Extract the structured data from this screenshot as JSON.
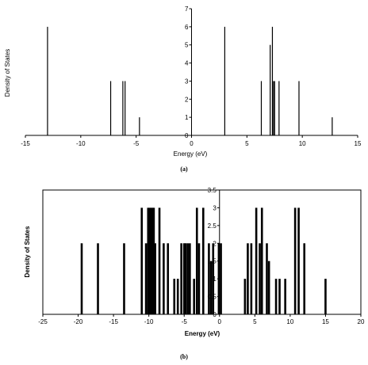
{
  "chart_data": [
    {
      "type": "bar",
      "caption": "(a)",
      "xlabel": "Energy (eV)",
      "ylabel": "Density of States",
      "xlim": [
        -15,
        15
      ],
      "ylim": [
        0,
        7
      ],
      "x_ticks": [
        -15,
        -10,
        -5,
        0,
        5,
        10,
        15
      ],
      "y_ticks": [
        0,
        1,
        2,
        3,
        4,
        5,
        6,
        7
      ],
      "grid": false,
      "legend": "none",
      "bars": [
        {
          "x": -13.0,
          "y": 6
        },
        {
          "x": -7.3,
          "y": 3
        },
        {
          "x": -6.2,
          "y": 3
        },
        {
          "x": -6.0,
          "y": 3
        },
        {
          "x": -4.7,
          "y": 1
        },
        {
          "x": 3.0,
          "y": 6
        },
        {
          "x": 6.3,
          "y": 3
        },
        {
          "x": 7.1,
          "y": 5
        },
        {
          "x": 7.3,
          "y": 6
        },
        {
          "x": 7.4,
          "y": 3
        },
        {
          "x": 7.5,
          "y": 3
        },
        {
          "x": 7.9,
          "y": 3
        },
        {
          "x": 9.7,
          "y": 3
        },
        {
          "x": 12.7,
          "y": 1
        }
      ]
    },
    {
      "type": "bar",
      "caption": "(b)",
      "xlabel": "Energy (eV)",
      "ylabel": "Density of States",
      "xlim": [
        -25,
        20
      ],
      "ylim": [
        0,
        3.5
      ],
      "x_ticks": [
        -25,
        -20,
        -15,
        -10,
        -5,
        0,
        5,
        10,
        15,
        20
      ],
      "y_ticks": [
        "0",
        "0.5",
        "1",
        "1.5",
        "2",
        "2.5",
        "3",
        "3.5"
      ],
      "grid": false,
      "legend": "none",
      "bars": [
        {
          "x": -19.5,
          "y": 2
        },
        {
          "x": -17.2,
          "y": 2
        },
        {
          "x": -13.5,
          "y": 2
        },
        {
          "x": -11.0,
          "y": 3
        },
        {
          "x": -10.4,
          "y": 2
        },
        {
          "x": -10.1,
          "y": 3
        },
        {
          "x": -9.9,
          "y": 3
        },
        {
          "x": -9.7,
          "y": 3
        },
        {
          "x": -9.5,
          "y": 3
        },
        {
          "x": -9.3,
          "y": 3
        },
        {
          "x": -9.1,
          "y": 2
        },
        {
          "x": -8.5,
          "y": 3
        },
        {
          "x": -7.9,
          "y": 2
        },
        {
          "x": -7.3,
          "y": 2
        },
        {
          "x": -6.4,
          "y": 1
        },
        {
          "x": -5.9,
          "y": 1
        },
        {
          "x": -5.4,
          "y": 2
        },
        {
          "x": -5.0,
          "y": 2
        },
        {
          "x": -4.8,
          "y": 2
        },
        {
          "x": -4.5,
          "y": 2
        },
        {
          "x": -4.2,
          "y": 2
        },
        {
          "x": -3.6,
          "y": 1
        },
        {
          "x": -3.2,
          "y": 3
        },
        {
          "x": -2.9,
          "y": 2
        },
        {
          "x": -2.3,
          "y": 3
        },
        {
          "x": -1.5,
          "y": 2
        },
        {
          "x": -1.2,
          "y": 1.5
        },
        {
          "x": -0.9,
          "y": 2
        },
        {
          "x": -0.1,
          "y": 2
        },
        {
          "x": 0.2,
          "y": 2
        },
        {
          "x": 3.6,
          "y": 1
        },
        {
          "x": 4.0,
          "y": 2
        },
        {
          "x": 4.5,
          "y": 2
        },
        {
          "x": 5.2,
          "y": 3
        },
        {
          "x": 5.7,
          "y": 2
        },
        {
          "x": 6.0,
          "y": 3
        },
        {
          "x": 6.7,
          "y": 2
        },
        {
          "x": 7.0,
          "y": 1.5
        },
        {
          "x": 8.0,
          "y": 1
        },
        {
          "x": 8.5,
          "y": 1
        },
        {
          "x": 9.3,
          "y": 1
        },
        {
          "x": 10.7,
          "y": 3
        },
        {
          "x": 11.2,
          "y": 3
        },
        {
          "x": 12.0,
          "y": 2
        },
        {
          "x": 15.0,
          "y": 1
        }
      ]
    }
  ]
}
